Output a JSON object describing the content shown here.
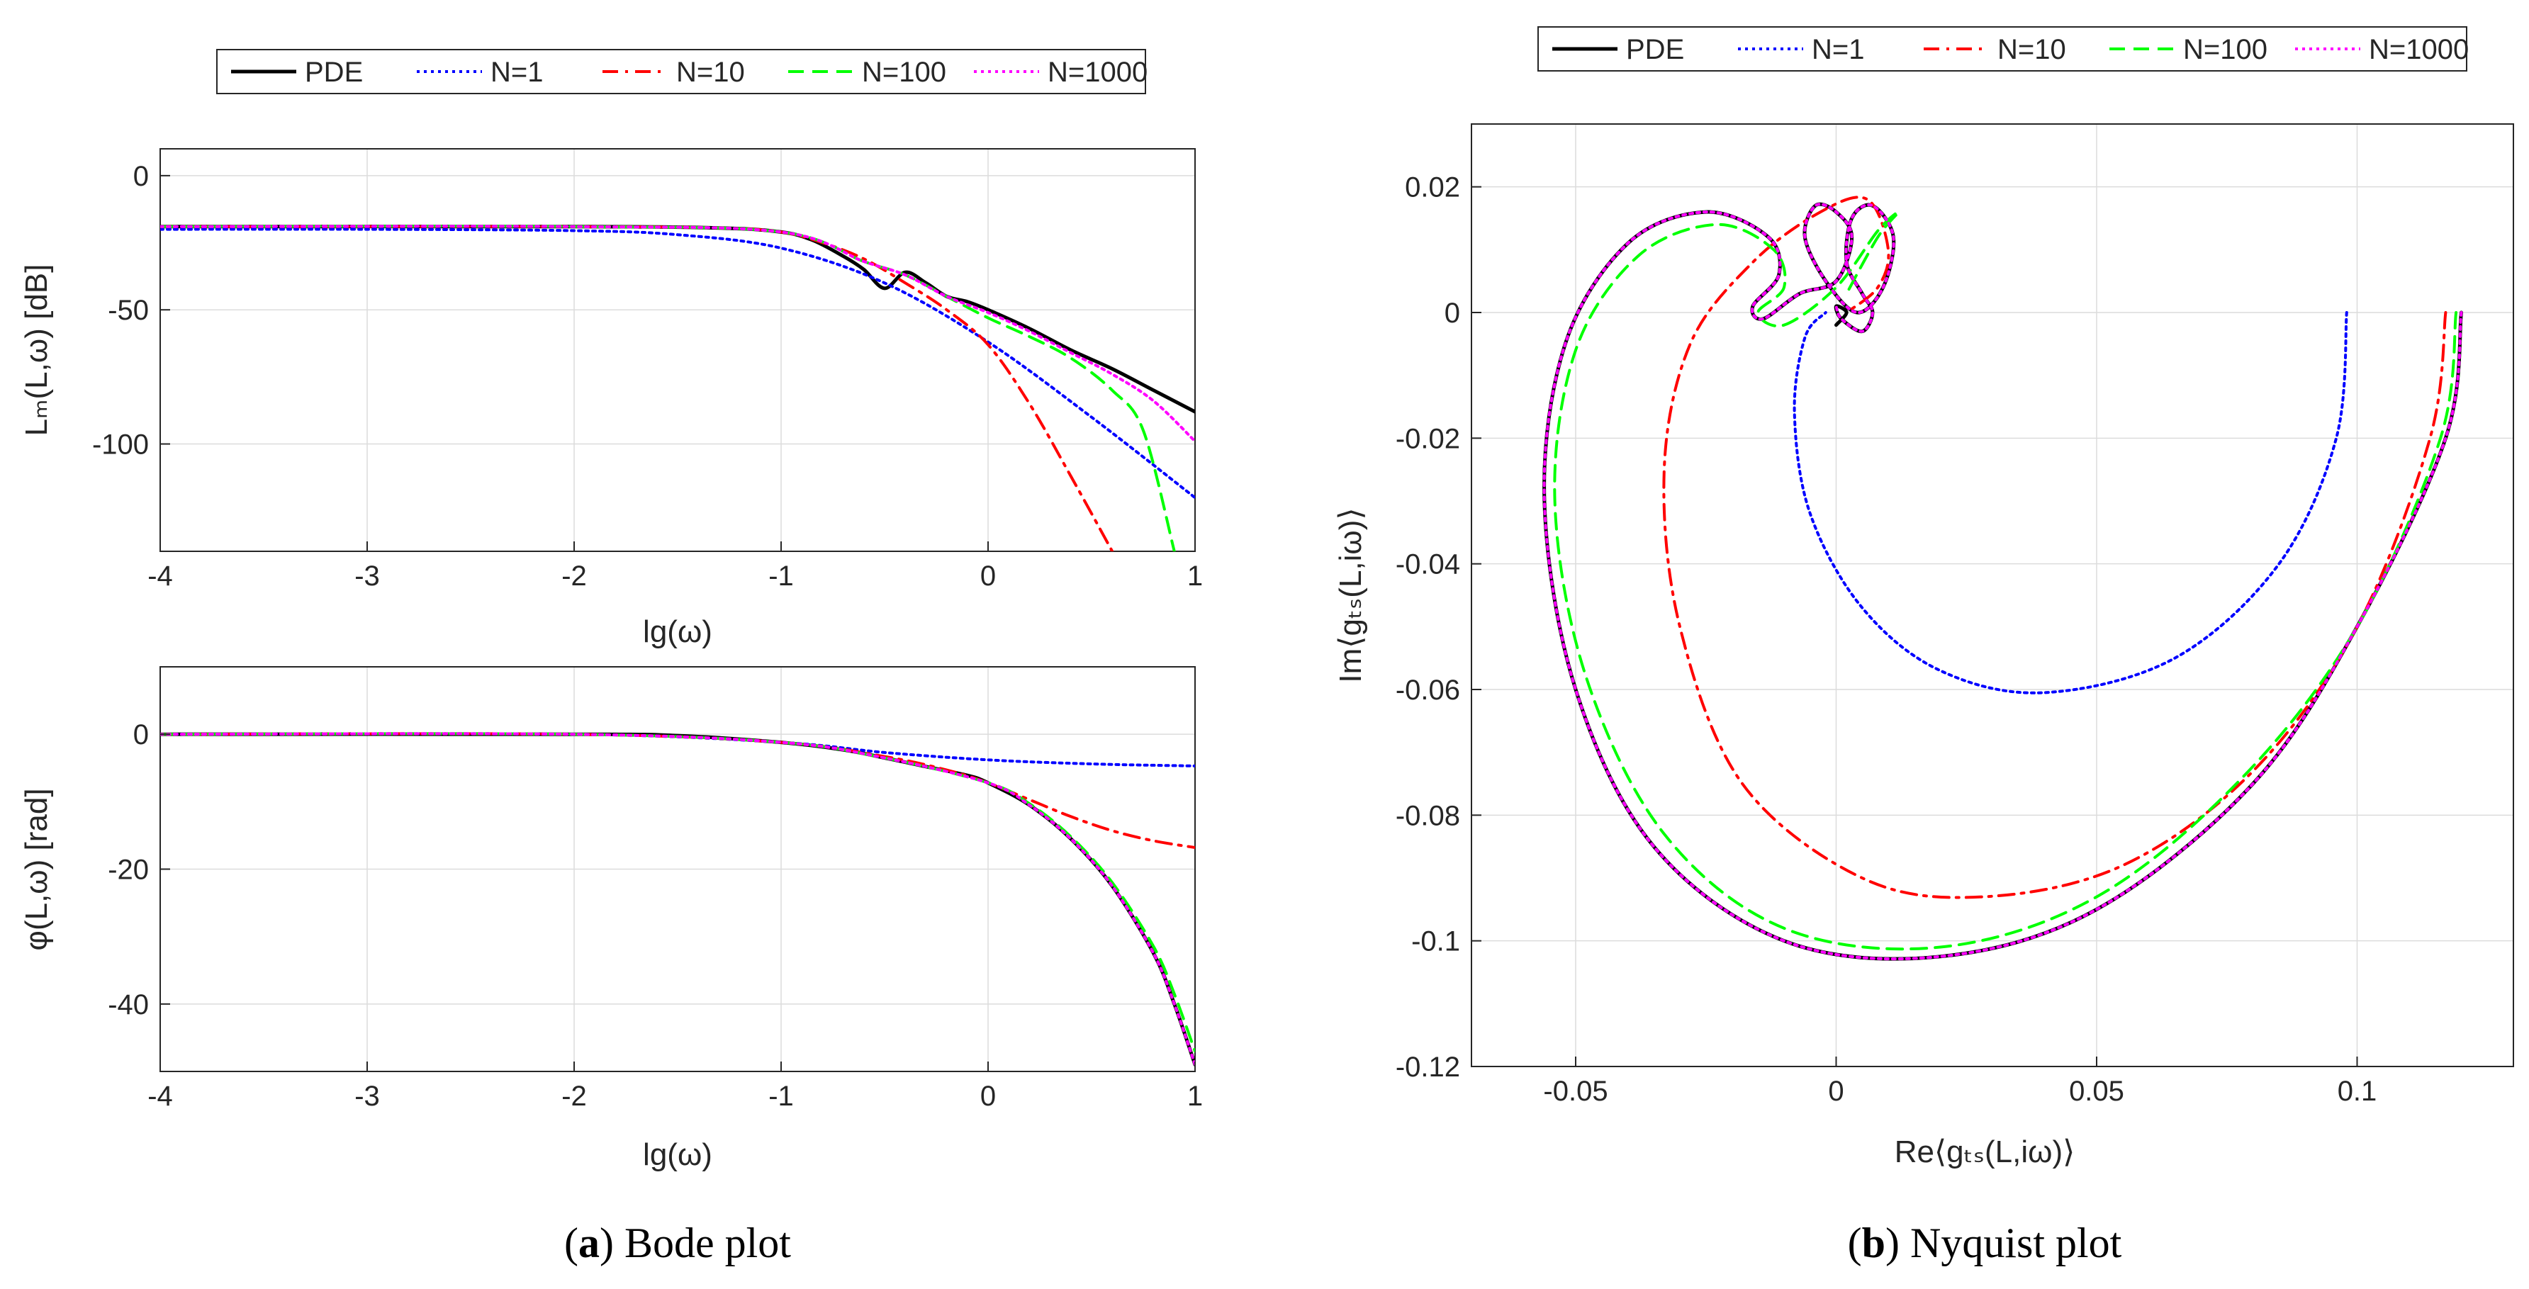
{
  "chart_data": [
    {
      "id": "bode_magnitude",
      "type": "line",
      "title": "",
      "xlabel": "lg(ω)",
      "ylabel": "Lₘ(L,ω) [dB]",
      "xlim": [
        -4,
        1
      ],
      "ylim": [
        -140,
        10
      ],
      "xticks": [
        "-4",
        "-3",
        "-2",
        "-1",
        "0",
        "1"
      ],
      "yticks": [
        "0",
        "-50",
        "-100"
      ],
      "grid": true,
      "series": [
        {
          "name": "PDE",
          "x": [
            -4,
            -2,
            -1.3,
            -1,
            -0.85,
            -0.7,
            -0.6,
            -0.5,
            -0.4,
            -0.3,
            -0.2,
            -0.1,
            0,
            0.2,
            0.4,
            0.6,
            0.8,
            1.0
          ],
          "y": [
            -19,
            -19,
            -19.5,
            -21,
            -24,
            -30,
            -35,
            -42,
            -36,
            -40,
            -45,
            -47,
            -50,
            -57,
            -65,
            -72,
            -80,
            -88
          ]
        },
        {
          "name": "N=1",
          "x": [
            -4,
            -3,
            -2,
            -1.5,
            -1,
            -0.5,
            0,
            0.5,
            1.0
          ],
          "y": [
            -20,
            -20,
            -20.5,
            -22,
            -27,
            -40,
            -62,
            -90,
            -120
          ]
        },
        {
          "name": "N=10",
          "x": [
            -4,
            -2,
            -1.3,
            -1,
            -0.8,
            -0.6,
            -0.4,
            -0.2,
            0,
            0.2,
            0.4,
            0.6
          ],
          "y": [
            -19,
            -19,
            -19.5,
            -21,
            -25,
            -31,
            -40,
            -50,
            -63,
            -85,
            -112,
            -140
          ]
        },
        {
          "name": "N=100",
          "x": [
            -4,
            -2,
            -1,
            -0.6,
            -0.4,
            -0.2,
            0,
            0.2,
            0.4,
            0.6,
            0.75,
            0.9
          ],
          "y": [
            -19,
            -19,
            -21,
            -32,
            -37,
            -45,
            -53,
            -60,
            -68,
            -80,
            -95,
            -140
          ]
        },
        {
          "name": "N=1000",
          "x": [
            -4,
            -2,
            -1,
            -0.6,
            -0.4,
            -0.2,
            0,
            0.2,
            0.4,
            0.6,
            0.8,
            1.0
          ],
          "y": [
            -19,
            -19,
            -21,
            -32,
            -37,
            -45,
            -51,
            -58,
            -66,
            -74,
            -84,
            -99
          ]
        }
      ]
    },
    {
      "id": "bode_phase",
      "type": "line",
      "title": "",
      "xlabel": "lg(ω)",
      "ylabel": "φ(L,ω) [rad]",
      "xlim": [
        -4,
        1
      ],
      "ylim": [
        -50,
        10
      ],
      "xticks": [
        "-4",
        "-3",
        "-2",
        "-1",
        "0",
        "1"
      ],
      "yticks": [
        "0",
        "-20",
        "-40"
      ],
      "grid": true,
      "series": [
        {
          "name": "PDE",
          "x": [
            -4,
            -2,
            -1.5,
            -1,
            -0.7,
            -0.5,
            -0.3,
            -0.1,
            0,
            0.2,
            0.4,
            0.6,
            0.8,
            0.9,
            1.0
          ],
          "y": [
            0,
            0,
            -0.2,
            -1.2,
            -2.3,
            -3.5,
            -4.8,
            -6.1,
            -7.2,
            -10.5,
            -15.5,
            -22.5,
            -32.5,
            -40,
            -49
          ]
        },
        {
          "name": "N=1",
          "x": [
            -4,
            -2,
            -1,
            -0.5,
            0,
            0.5,
            1.0
          ],
          "y": [
            0,
            0,
            -1.2,
            -2.7,
            -3.8,
            -4.4,
            -4.7
          ]
        },
        {
          "name": "N=10",
          "x": [
            -4,
            -2,
            -1,
            -0.5,
            -0.2,
            0,
            0.2,
            0.4,
            0.6,
            0.8,
            1.0
          ],
          "y": [
            0,
            0,
            -1.2,
            -3.3,
            -5.3,
            -7.2,
            -9.7,
            -12.2,
            -14.3,
            -15.8,
            -16.8
          ]
        },
        {
          "name": "N=100",
          "x": [
            -4,
            -2,
            -1,
            -0.5,
            0,
            0.2,
            0.4,
            0.6,
            0.8,
            0.9,
            1.0
          ],
          "y": [
            0,
            0,
            -1.2,
            -3.5,
            -7.2,
            -10.3,
            -15.2,
            -22,
            -31.5,
            -38.5,
            -47
          ]
        },
        {
          "name": "N=1000",
          "x": [
            -4,
            -2,
            -1,
            -0.5,
            0,
            0.2,
            0.4,
            0.6,
            0.8,
            0.9,
            1.0
          ],
          "y": [
            0,
            0,
            -1.2,
            -3.5,
            -7.2,
            -10.5,
            -15.5,
            -22.5,
            -32.5,
            -40,
            -49
          ]
        }
      ]
    },
    {
      "id": "nyquist",
      "type": "line",
      "title": "",
      "xlabel": "Re⟨gₜₛ(L,iω)⟩",
      "ylabel": "Im⟨gₜₛ(L,iω)⟩",
      "xlim": [
        -0.07,
        0.13
      ],
      "ylim": [
        -0.12,
        0.03
      ],
      "xticks": [
        "-0.05",
        "0",
        "0.05",
        "0.1"
      ],
      "yticks": [
        "0.02",
        "0",
        "-0.02",
        "-0.04",
        "-0.06",
        "-0.08",
        "-0.1",
        "-0.12"
      ],
      "grid": true,
      "series": [
        {
          "name": "PDE",
          "x": [
            0.12,
            0.117,
            0.1,
            0.08,
            0.05,
            0.02,
            -0.01,
            -0.035,
            -0.05,
            -0.056,
            -0.052,
            -0.04,
            -0.025,
            -0.013,
            -0.011,
            -0.016,
            -0.014,
            -0.007,
            0.0,
            0.003,
            0.0,
            -0.004,
            -0.006,
            -0.002,
            0.004,
            0.009,
            0.011,
            0.007,
            0.003,
            0.002,
            0.005,
            0.007,
            0.005,
            0.001,
            0.0,
            0.002,
            0.0
          ],
          "y": [
            0.0,
            -0.02,
            -0.05,
            -0.075,
            -0.095,
            -0.1025,
            -0.1,
            -0.085,
            -0.06,
            -0.03,
            -0.005,
            0.011,
            0.016,
            0.012,
            0.006,
            0.001,
            -0.001,
            0.003,
            0.005,
            0.012,
            0.016,
            0.017,
            0.012,
            0.005,
            0.0,
            0.004,
            0.012,
            0.017,
            0.015,
            0.008,
            0.003,
            0.0,
            -0.003,
            -0.001,
            0.001,
            0.0,
            -0.002
          ]
        },
        {
          "name": "N=1",
          "x": [
            0.098,
            0.096,
            0.085,
            0.065,
            0.04,
            0.02,
            0.005,
            -0.005,
            -0.008,
            -0.006,
            -0.002
          ],
          "y": [
            0.0,
            -0.02,
            -0.04,
            -0.055,
            -0.0605,
            -0.057,
            -0.047,
            -0.032,
            -0.016,
            -0.004,
            0.0
          ]
        },
        {
          "name": "N=10",
          "x": [
            0.117,
            0.114,
            0.1,
            0.08,
            0.055,
            0.028,
            0.005,
            -0.018,
            -0.03,
            -0.033,
            -0.028,
            -0.016,
            -0.003,
            0.006,
            0.01,
            0.008,
            0.002
          ],
          "y": [
            0.0,
            -0.02,
            -0.05,
            -0.073,
            -0.088,
            -0.093,
            -0.09,
            -0.075,
            -0.05,
            -0.025,
            -0.005,
            0.008,
            0.016,
            0.018,
            0.01,
            0.004,
            0.0
          ]
        },
        {
          "name": "N=100",
          "x": [
            0.119,
            0.116,
            0.1,
            0.078,
            0.05,
            0.02,
            -0.01,
            -0.033,
            -0.048,
            -0.054,
            -0.05,
            -0.038,
            -0.023,
            -0.012,
            -0.01,
            -0.015,
            -0.01,
            0.0,
            0.008,
            0.012,
            0.008,
            0.002
          ],
          "y": [
            0.0,
            -0.02,
            -0.05,
            -0.074,
            -0.093,
            -0.101,
            -0.098,
            -0.083,
            -0.058,
            -0.03,
            -0.006,
            0.009,
            0.014,
            0.01,
            0.004,
            0.0,
            -0.002,
            0.004,
            0.013,
            0.016,
            0.012,
            0.003
          ]
        },
        {
          "name": "N=1000",
          "x": [
            0.12,
            0.117,
            0.1,
            0.08,
            0.05,
            0.02,
            -0.01,
            -0.035,
            -0.05,
            -0.056,
            -0.052,
            -0.04,
            -0.025,
            -0.013,
            -0.011,
            -0.016,
            -0.014,
            -0.007,
            0.0,
            0.003,
            0.0,
            -0.004,
            -0.006,
            -0.002,
            0.004,
            0.009,
            0.011,
            0.007,
            0.003,
            0.002,
            0.005,
            0.007,
            0.005,
            0.001,
            0.0
          ],
          "y": [
            0.0,
            -0.02,
            -0.05,
            -0.075,
            -0.095,
            -0.1025,
            -0.1,
            -0.085,
            -0.06,
            -0.03,
            -0.005,
            0.011,
            0.016,
            0.012,
            0.006,
            0.001,
            -0.001,
            0.003,
            0.005,
            0.012,
            0.016,
            0.017,
            0.012,
            0.005,
            0.0,
            0.004,
            0.012,
            0.017,
            0.015,
            0.008,
            0.003,
            0.0,
            -0.003,
            -0.001,
            0.001
          ]
        }
      ]
    }
  ],
  "legend": {
    "entries": [
      "PDE",
      "N=1",
      "N=10",
      "N=100",
      "N=1000"
    ],
    "colors": [
      "#000000",
      "#0000ff",
      "#ff0000",
      "#00ff00",
      "#ff00ff"
    ],
    "styles": [
      "solid",
      "dotted",
      "dashdot",
      "dashed",
      "dotted"
    ]
  },
  "captions": {
    "a_letter": "a",
    "a_text": " Bode plot",
    "b_letter": "b",
    "b_text": " Nyquist plot"
  }
}
